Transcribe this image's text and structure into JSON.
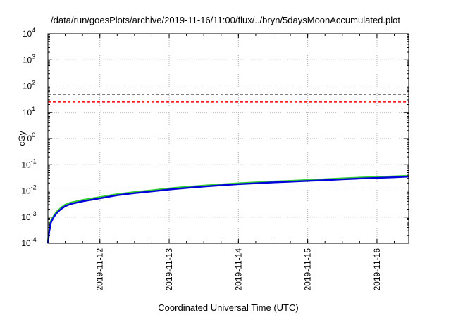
{
  "chart_data": {
    "type": "line",
    "title": "/data/run/goesPlots/archive/2019-11-16/11:00/flux/../bryn/5daysMoonAccumulated.plot",
    "xlabel": "Coordinated Universal Time (UTC)",
    "ylabel": "cGy",
    "y_scale": "log",
    "ylim": [
      "1e-4",
      "1e4"
    ],
    "xlim": [
      "2019-11-11 06:00",
      "2019-11-16 11:00"
    ],
    "grid": true,
    "y_ticks": [
      {
        "base": "10",
        "exp": "-4",
        "value": 0.0001
      },
      {
        "base": "10",
        "exp": "-3",
        "value": 0.001
      },
      {
        "base": "10",
        "exp": "-2",
        "value": 0.01
      },
      {
        "base": "10",
        "exp": "-1",
        "value": 0.1
      },
      {
        "base": "10",
        "exp": "0",
        "value": 1
      },
      {
        "base": "10",
        "exp": "1",
        "value": 10
      },
      {
        "base": "10",
        "exp": "2",
        "value": 100
      },
      {
        "base": "10",
        "exp": "3",
        "value": 1000
      },
      {
        "base": "10",
        "exp": "4",
        "value": 10000
      }
    ],
    "x_ticks": [
      "2019-11-12",
      "2019-11-13",
      "2019-11-14",
      "2019-11-15",
      "2019-11-16"
    ],
    "reference_lines": [
      {
        "value": 50,
        "color": "#000000",
        "style": "dashed"
      },
      {
        "value": 25,
        "color": "#ff0000",
        "style": "dashed"
      }
    ],
    "series": [
      {
        "color": "#33cc33",
        "x": [
          "2019-11-11 06:00",
          "2019-11-11 06:30",
          "2019-11-11 07:00",
          "2019-11-11 08:00",
          "2019-11-11 09:00",
          "2019-11-11 10:00",
          "2019-11-11 11:00",
          "2019-11-11 12:00",
          "2019-11-11 14:00",
          "2019-11-11 18:00",
          "2019-11-12 00:00",
          "2019-11-12 06:00",
          "2019-11-12 12:00",
          "2019-11-12 18:00",
          "2019-11-13 00:00",
          "2019-11-13 06:00",
          "2019-11-13 12:00",
          "2019-11-13 18:00",
          "2019-11-14 00:00",
          "2019-11-14 06:00",
          "2019-11-14 12:00",
          "2019-11-14 18:00",
          "2019-11-15 00:00",
          "2019-11-15 06:00",
          "2019-11-15 12:00",
          "2019-11-15 18:00",
          "2019-11-16 00:00",
          "2019-11-16 06:00",
          "2019-11-16 11:00"
        ],
        "y": [
          0.00012,
          0.00035,
          0.0007,
          0.0011,
          0.0016,
          0.002,
          0.0025,
          0.003,
          0.0036,
          0.0045,
          0.0058,
          0.0075,
          0.009,
          0.0105,
          0.0125,
          0.0142,
          0.016,
          0.0177,
          0.0195,
          0.021,
          0.0228,
          0.0243,
          0.026,
          0.0278,
          0.03,
          0.0322,
          0.034,
          0.0358,
          0.038
        ]
      },
      {
        "color": "#0000dd",
        "x": [
          "2019-11-11 06:00",
          "2019-11-11 06:30",
          "2019-11-11 07:00",
          "2019-11-11 08:00",
          "2019-11-11 09:00",
          "2019-11-11 10:00",
          "2019-11-11 11:00",
          "2019-11-11 12:00",
          "2019-11-11 14:00",
          "2019-11-11 18:00",
          "2019-11-12 00:00",
          "2019-11-12 06:00",
          "2019-11-12 12:00",
          "2019-11-12 18:00",
          "2019-11-13 00:00",
          "2019-11-13 06:00",
          "2019-11-13 12:00",
          "2019-11-13 18:00",
          "2019-11-14 00:00",
          "2019-11-14 06:00",
          "2019-11-14 12:00",
          "2019-11-14 18:00",
          "2019-11-15 00:00",
          "2019-11-15 06:00",
          "2019-11-15 12:00",
          "2019-11-15 18:00",
          "2019-11-16 00:00",
          "2019-11-16 06:00",
          "2019-11-16 11:00"
        ],
        "y": [
          0.0001,
          0.0003,
          0.0006,
          0.001,
          0.0014,
          0.0018,
          0.0022,
          0.0026,
          0.0032,
          0.004,
          0.0052,
          0.0068,
          0.0082,
          0.0096,
          0.0113,
          0.013,
          0.0147,
          0.0163,
          0.018,
          0.0195,
          0.0211,
          0.0225,
          0.024,
          0.0256,
          0.0276,
          0.0296,
          0.0313,
          0.033,
          0.035
        ]
      }
    ]
  }
}
